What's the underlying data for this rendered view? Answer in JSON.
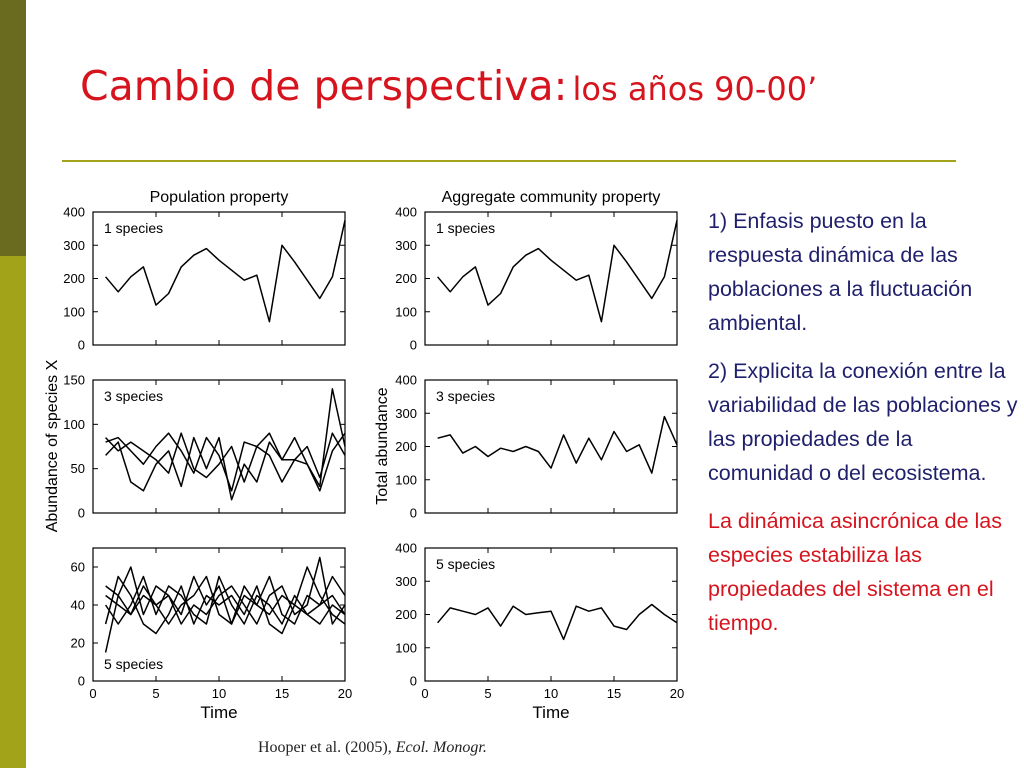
{
  "slide": {
    "title_main": "Cambio de perspectiva:",
    "title_sub": "los años 90-00’",
    "accent_color": "#d6141e",
    "body_color": "#1f1f6b",
    "bar_dark": "#6b6b1f",
    "bar_light": "#a3a31a"
  },
  "bullets": [
    "1) Enfasis puesto en la respuesta dinámica de las poblaciones a la fluctuación ambiental.",
    "2) Explicita la conexión entre la variabilidad de las poblaciones y las propiedades de la comunidad o del ecosistema.",
    "La dinámica asincrónica de las especies estabiliza las propiedades del sistema en el tiempo."
  ],
  "citation": {
    "authors": "Hooper et al. (2005),",
    "journal": "Ecol. Monogr."
  },
  "chart_data": [
    {
      "type": "line",
      "panel": "left-top",
      "column_title": "Population property",
      "label": "1 species",
      "ylabel": "Abundance of species X",
      "ylim": [
        0,
        400
      ],
      "yticks": [
        0,
        100,
        200,
        300,
        400
      ],
      "xlim": [
        0,
        20
      ],
      "x": [
        1,
        2,
        3,
        4,
        5,
        6,
        7,
        8,
        9,
        10,
        11,
        12,
        13,
        14,
        15,
        16,
        17,
        18,
        19,
        20
      ],
      "series": [
        {
          "values": [
            205,
            160,
            205,
            235,
            120,
            155,
            235,
            270,
            290,
            255,
            225,
            195,
            210,
            70,
            300,
            250,
            195,
            140,
            205,
            375
          ]
        }
      ]
    },
    {
      "type": "line",
      "panel": "right-top",
      "column_title": "Aggregate community property",
      "label": "1 species",
      "ylabel": "Total abundance",
      "ylim": [
        0,
        400
      ],
      "yticks": [
        0,
        100,
        200,
        300,
        400
      ],
      "xlim": [
        0,
        20
      ],
      "x": [
        1,
        2,
        3,
        4,
        5,
        6,
        7,
        8,
        9,
        10,
        11,
        12,
        13,
        14,
        15,
        16,
        17,
        18,
        19,
        20
      ],
      "series": [
        {
          "values": [
            205,
            160,
            205,
            235,
            120,
            155,
            235,
            270,
            290,
            255,
            225,
            195,
            210,
            70,
            300,
            250,
            195,
            140,
            205,
            375
          ]
        }
      ]
    },
    {
      "type": "line",
      "panel": "left-middle",
      "label": "3 species",
      "ylim": [
        0,
        150
      ],
      "yticks": [
        0,
        50,
        100,
        150
      ],
      "xlim": [
        0,
        20
      ],
      "x": [
        1,
        2,
        3,
        4,
        5,
        6,
        7,
        8,
        9,
        10,
        11,
        12,
        13,
        14,
        15,
        16,
        17,
        18,
        19,
        20
      ],
      "series": [
        {
          "values": [
            80,
            85,
            70,
            55,
            75,
            90,
            70,
            45,
            85,
            65,
            25,
            80,
            75,
            90,
            60,
            85,
            55,
            30,
            140,
            75
          ]
        },
        {
          "values": [
            65,
            80,
            35,
            25,
            55,
            70,
            30,
            85,
            50,
            85,
            15,
            55,
            35,
            80,
            60,
            60,
            55,
            25,
            70,
            90
          ]
        },
        {
          "values": [
            85,
            70,
            80,
            70,
            60,
            45,
            90,
            50,
            40,
            55,
            75,
            35,
            75,
            65,
            35,
            60,
            75,
            40,
            90,
            65
          ]
        }
      ]
    },
    {
      "type": "line",
      "panel": "right-middle",
      "label": "3 species",
      "ylim": [
        0,
        400
      ],
      "yticks": [
        0,
        100,
        200,
        300,
        400
      ],
      "xlim": [
        0,
        20
      ],
      "x": [
        1,
        2,
        3,
        4,
        5,
        6,
        7,
        8,
        9,
        10,
        11,
        12,
        13,
        14,
        15,
        16,
        17,
        18,
        19,
        20
      ],
      "series": [
        {
          "values": [
            225,
            235,
            180,
            200,
            170,
            195,
            185,
            200,
            185,
            135,
            235,
            150,
            225,
            160,
            245,
            185,
            205,
            120,
            290,
            205
          ]
        }
      ]
    },
    {
      "type": "line",
      "panel": "left-bottom",
      "label": "5 species",
      "ylim": [
        0,
        70
      ],
      "yticks": [
        0,
        20,
        40,
        60
      ],
      "xlim": [
        0,
        20
      ],
      "x": [
        1,
        2,
        3,
        4,
        5,
        6,
        7,
        8,
        9,
        10,
        11,
        12,
        13,
        14,
        15,
        16,
        17,
        18,
        19,
        20
      ],
      "series": [
        {
          "values": [
            45,
            40,
            35,
            50,
            40,
            45,
            35,
            55,
            40,
            50,
            30,
            45,
            40,
            35,
            45,
            40,
            35,
            30,
            40,
            35
          ]
        },
        {
          "values": [
            30,
            55,
            45,
            30,
            25,
            35,
            50,
            30,
            45,
            40,
            45,
            35,
            50,
            30,
            25,
            40,
            60,
            45,
            35,
            30
          ]
        },
        {
          "values": [
            50,
            45,
            35,
            45,
            40,
            30,
            40,
            45,
            55,
            35,
            30,
            50,
            40,
            55,
            35,
            30,
            45,
            40,
            55,
            45
          ]
        },
        {
          "values": [
            15,
            45,
            60,
            35,
            50,
            45,
            30,
            40,
            35,
            45,
            50,
            40,
            30,
            45,
            50,
            35,
            40,
            65,
            30,
            40
          ]
        },
        {
          "values": [
            40,
            30,
            40,
            55,
            35,
            50,
            45,
            35,
            30,
            55,
            40,
            30,
            45,
            40,
            30,
            45,
            35,
            40,
            45,
            35
          ]
        }
      ]
    },
    {
      "type": "line",
      "panel": "right-bottom",
      "label": "5 species",
      "ylim": [
        0,
        400
      ],
      "yticks": [
        0,
        100,
        200,
        300,
        400
      ],
      "xlim": [
        0,
        20
      ],
      "xticks": [
        0,
        5,
        10,
        15,
        20
      ],
      "xlabel": "Time",
      "x": [
        1,
        2,
        3,
        4,
        5,
        6,
        7,
        8,
        9,
        10,
        11,
        12,
        13,
        14,
        15,
        16,
        17,
        18,
        19,
        20
      ],
      "series": [
        {
          "values": [
            175,
            220,
            210,
            200,
            220,
            165,
            225,
            200,
            205,
            210,
            125,
            225,
            210,
            220,
            165,
            155,
            200,
            230,
            200,
            175
          ]
        }
      ]
    }
  ],
  "left_xaxis": {
    "xticks": [
      0,
      5,
      10,
      15,
      20
    ],
    "xlabel": "Time"
  }
}
